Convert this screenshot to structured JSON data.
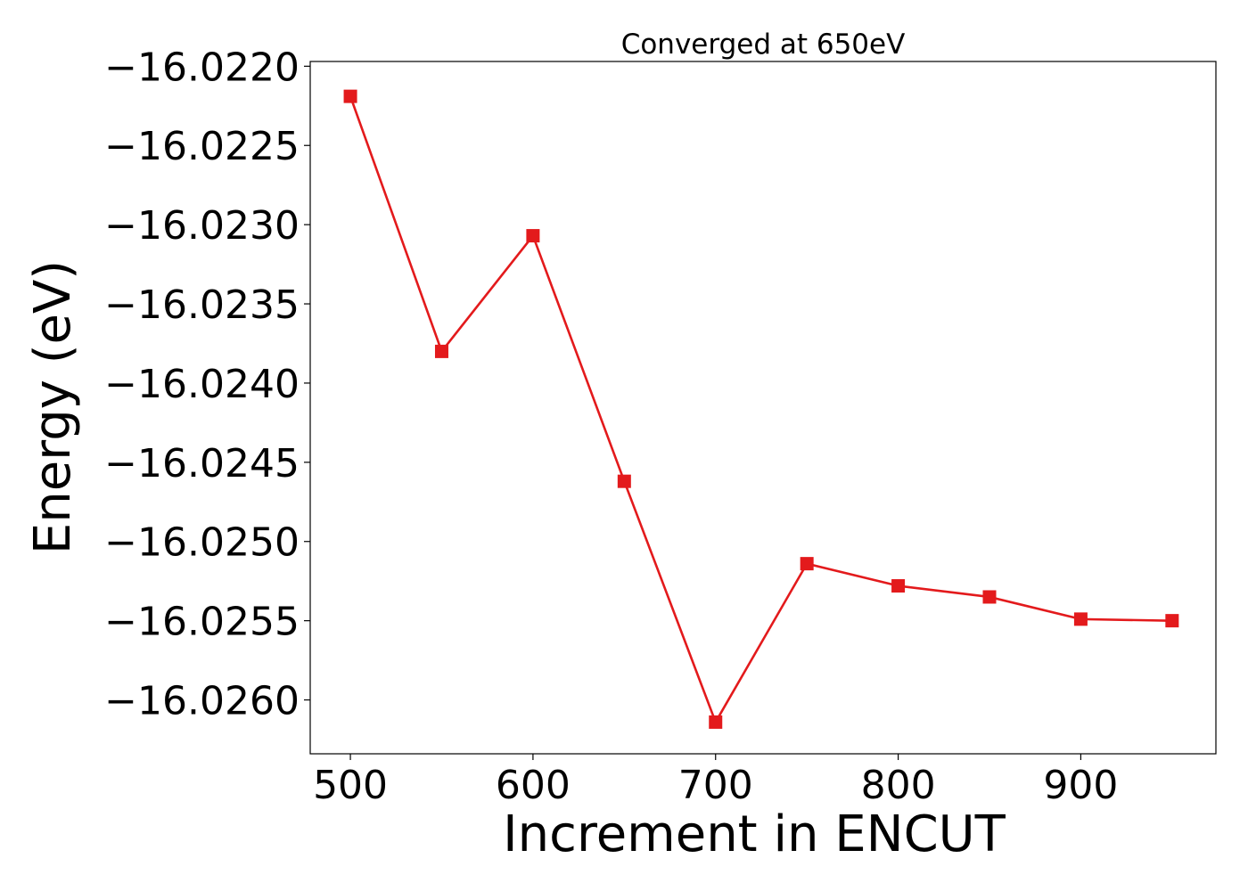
{
  "chart_data": {
    "type": "line",
    "title": "Converged at 650eV",
    "xlabel": "Increment in ENCUT",
    "ylabel": "Energy (eV)",
    "xlim": [
      478,
      974
    ],
    "ylim": [
      -16.02634,
      -16.02197
    ],
    "xticks": [
      500,
      600,
      700,
      800,
      900
    ],
    "xtick_labels": [
      "500",
      "600",
      "700",
      "800",
      "900"
    ],
    "yticks": [
      -16.022,
      -16.0225,
      -16.023,
      -16.0235,
      -16.024,
      -16.0245,
      -16.025,
      -16.0255,
      -16.026
    ],
    "ytick_labels": [
      "−16.0220",
      "−16.0225",
      "−16.0230",
      "−16.0235",
      "−16.0240",
      "−16.0245",
      "−16.0250",
      "−16.0255",
      "−16.0260"
    ],
    "grid": false,
    "legend": "none",
    "series": [
      {
        "color": "#e31a1c",
        "marker": "square",
        "x": [
          500,
          550,
          600,
          650,
          700,
          750,
          800,
          850,
          900,
          950
        ],
        "y": [
          -16.02219,
          -16.0238,
          -16.02307,
          -16.02462,
          -16.02614,
          -16.02514,
          -16.02528,
          -16.02535,
          -16.02549,
          -16.0255
        ]
      }
    ]
  }
}
